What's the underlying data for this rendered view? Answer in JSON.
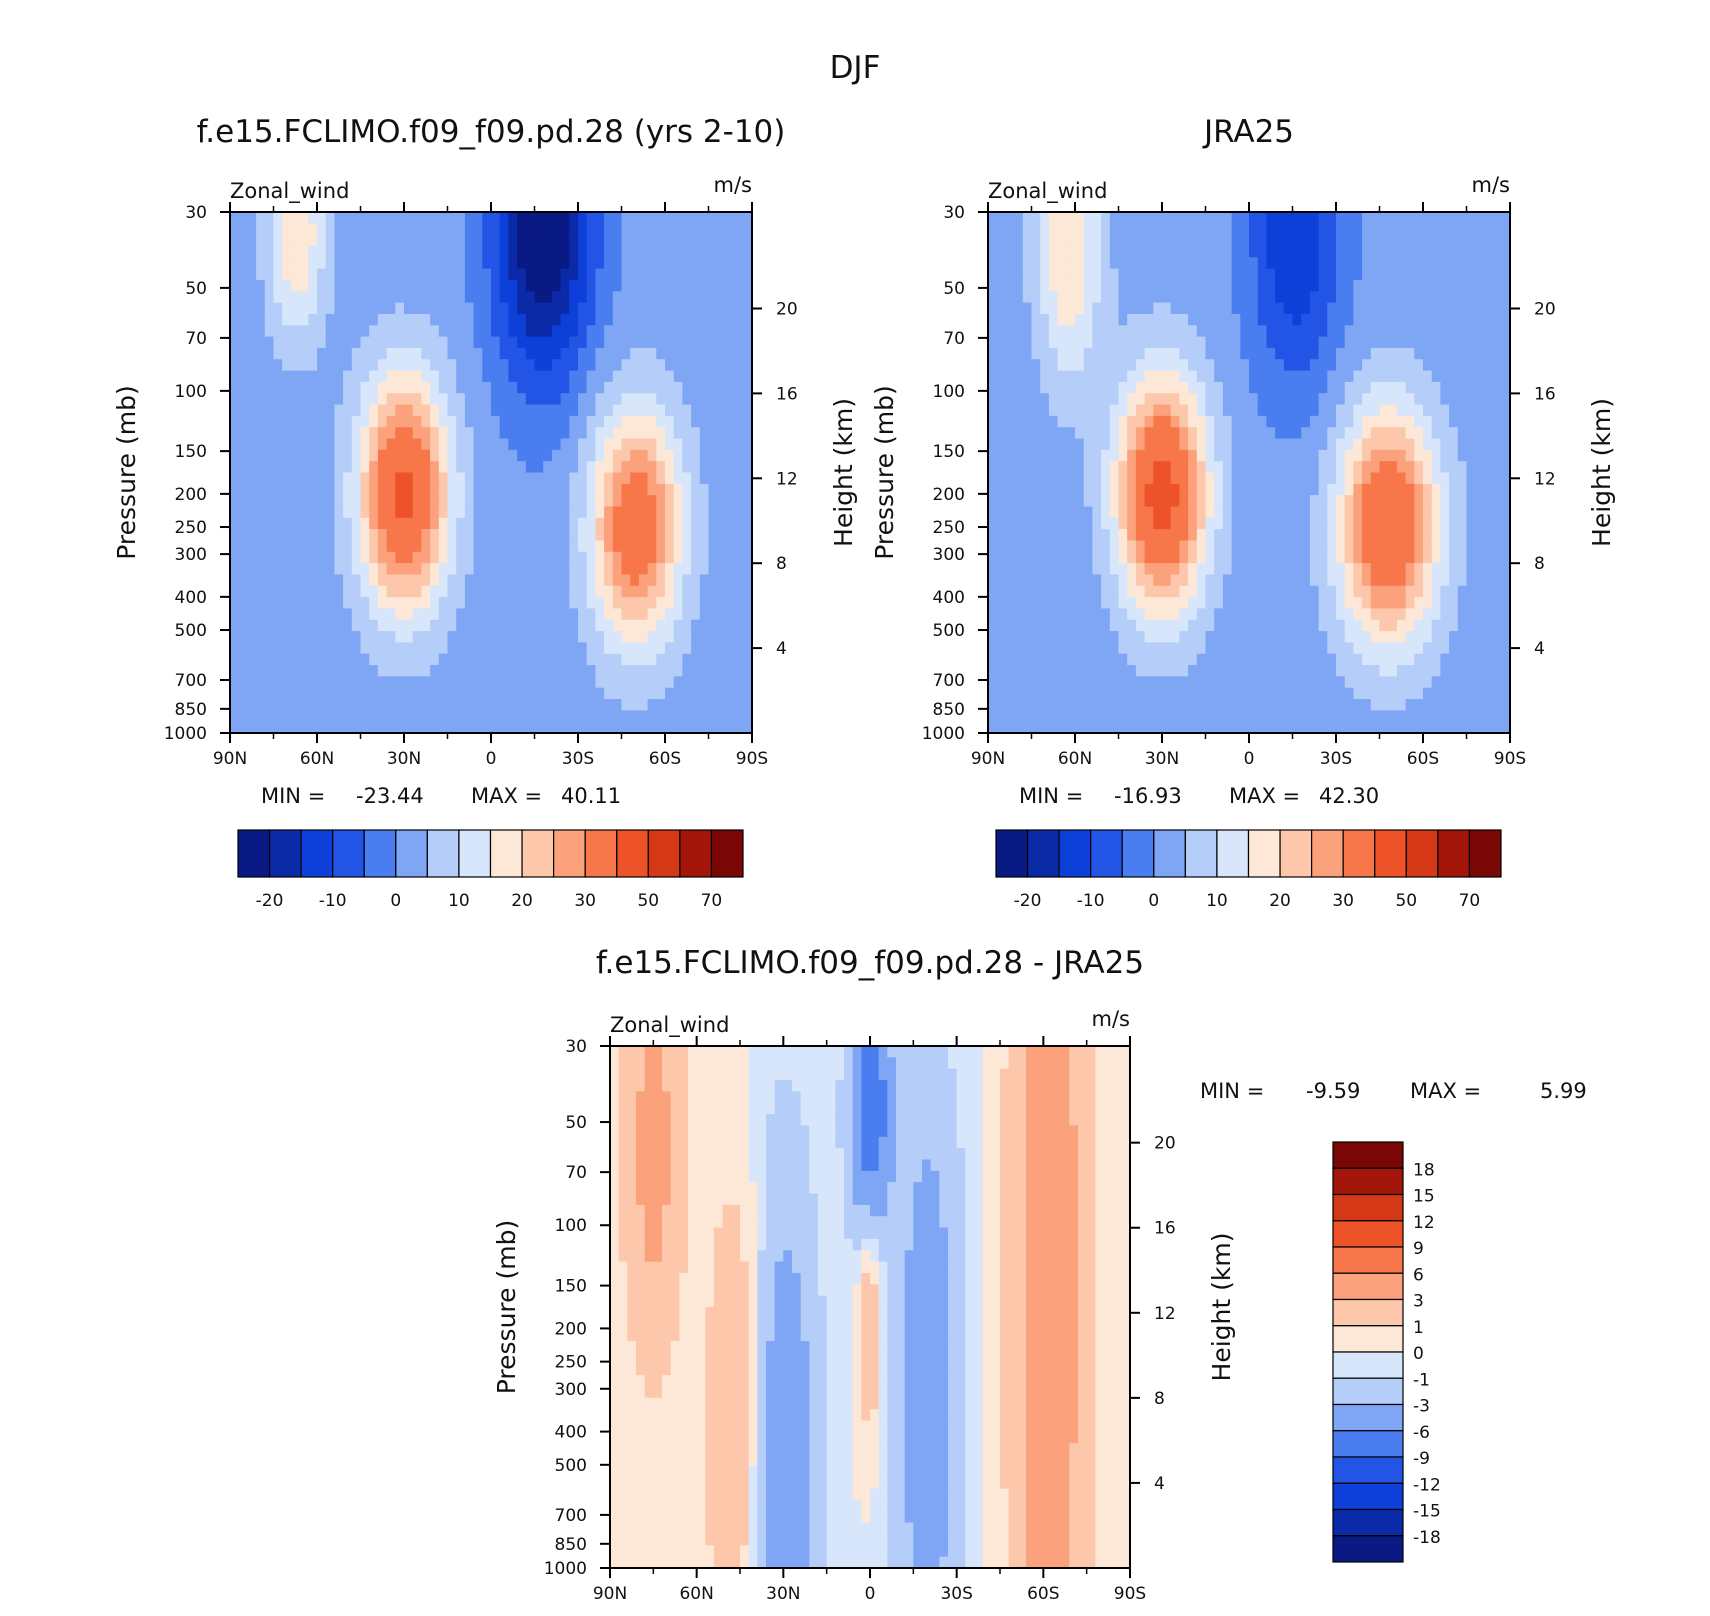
{
  "title": "DJF",
  "palette": {
    "cmap15": [
      "#0a1a85",
      "#0b2aa8",
      "#0d40d9",
      "#2255e6",
      "#4a7ef0",
      "#7ea6f5",
      "#b5cdf9",
      "#d7e6fb",
      "#fde7d6",
      "#fcc7aa",
      "#fba17b",
      "#f7774a",
      "#ee5228",
      "#d43816",
      "#a5160a",
      "#7a0606"
    ],
    "cmap16": [
      "#0a1a85",
      "#0b2aa8",
      "#0d40d9",
      "#2255e6",
      "#4a7ef0",
      "#7ea6f5",
      "#b5cdf9",
      "#d7e6fb",
      "#fde7d6",
      "#fcc7aa",
      "#fba17b",
      "#f7774a",
      "#ee5228",
      "#d43816",
      "#a5160a",
      "#7a0606"
    ]
  },
  "chart_data": [
    {
      "type": "heatmap",
      "name": "model",
      "title": "f.e15.FCLIMO.f09_f09.pd.28 (yrs 2-10)",
      "left_label": "Zonal_wind",
      "right_label": "m/s",
      "ylabel": "Pressure (mb)",
      "ylabel_right": "Height (km)",
      "xlabel": "",
      "x_ticks": [
        "90N",
        "60N",
        "30N",
        "0",
        "30S",
        "60S",
        "90S"
      ],
      "pressure_ticks": [
        "30",
        "50",
        "70",
        "100",
        "150",
        "200",
        "250",
        "300",
        "400",
        "500",
        "700",
        "850",
        "1000"
      ],
      "height_ticks": [
        "20",
        "16",
        "12",
        "8",
        "4"
      ],
      "stats": {
        "min_label": "MIN =",
        "min": "-23.44",
        "max_label": "MAX =",
        "max": "40.11"
      },
      "levels": [
        -25,
        -20,
        -15,
        -10,
        -5,
        0,
        5,
        10,
        15,
        20,
        25,
        30,
        40,
        50,
        60,
        70
      ],
      "colorbar_labels": [
        "-20",
        "-10",
        "0",
        "10",
        "20",
        "30",
        "50",
        "70"
      ],
      "field_centers": [
        {
          "lat": 30,
          "p": 200,
          "u": 40,
          "wlat": 11,
          "wp": 0.55
        },
        {
          "lat": -50,
          "p": 250,
          "u": 35,
          "wlat": 11,
          "wp": 0.55
        },
        {
          "lat": -18,
          "p": 35,
          "u": -28,
          "wlat": 12,
          "wp": 0.7
        },
        {
          "lat": 67,
          "p": 35,
          "u": 18,
          "wlat": 7,
          "wp": 0.5
        }
      ]
    },
    {
      "type": "heatmap",
      "name": "obs",
      "title": "JRA25",
      "left_label": "Zonal_wind",
      "right_label": "m/s",
      "ylabel": "Pressure (mb)",
      "ylabel_right": "Height (km)",
      "x_ticks": [
        "90N",
        "60N",
        "30N",
        "0",
        "30S",
        "60S",
        "90S"
      ],
      "pressure_ticks": [
        "30",
        "50",
        "70",
        "100",
        "150",
        "200",
        "250",
        "300",
        "400",
        "500",
        "700",
        "850",
        "1000"
      ],
      "height_ticks": [
        "20",
        "16",
        "12",
        "8",
        "4"
      ],
      "stats": {
        "min_label": "MIN =",
        "min": "-16.93",
        "max_label": "MAX =",
        "max": "42.30"
      },
      "levels": [
        -25,
        -20,
        -15,
        -10,
        -5,
        0,
        5,
        10,
        15,
        20,
        25,
        30,
        40,
        50,
        60,
        70
      ],
      "colorbar_labels": [
        "-20",
        "-10",
        "0",
        "10",
        "20",
        "30",
        "50",
        "70"
      ],
      "field_centers": [
        {
          "lat": 30,
          "p": 200,
          "u": 42,
          "wlat": 11,
          "wp": 0.55
        },
        {
          "lat": -48,
          "p": 250,
          "u": 38,
          "wlat": 12,
          "wp": 0.55
        },
        {
          "lat": -16,
          "p": 35,
          "u": -17,
          "wlat": 11,
          "wp": 0.7
        },
        {
          "lat": 62,
          "p": 40,
          "u": 18,
          "wlat": 8,
          "wp": 0.6
        }
      ]
    },
    {
      "type": "heatmap",
      "name": "diff",
      "title": "f.e15.FCLIMO.f09_f09.pd.28 - JRA25",
      "left_label": "Zonal_wind",
      "right_label": "m/s",
      "ylabel": "Pressure (mb)",
      "ylabel_right": "Height (km)",
      "x_ticks": [
        "90N",
        "60N",
        "30N",
        "0",
        "30S",
        "60S",
        "90S"
      ],
      "pressure_ticks": [
        "30",
        "50",
        "70",
        "100",
        "150",
        "200",
        "250",
        "300",
        "400",
        "500",
        "700",
        "850",
        "1000"
      ],
      "height_ticks": [
        "20",
        "16",
        "12",
        "8",
        "4"
      ],
      "stats": {
        "min_label": "MIN =",
        "min": "-9.59",
        "max_label": "MAX =",
        "max": "5.99"
      },
      "levels": [
        -21,
        -18,
        -15,
        -12,
        -9,
        -6,
        -3,
        -1,
        0,
        1,
        3,
        6,
        9,
        12,
        15,
        18
      ],
      "colorbar_labels": [
        "18",
        "15",
        "12",
        "9",
        "6",
        "3",
        "1",
        "0",
        "-1",
        "-3",
        "-6",
        "-9",
        "-12",
        "-15",
        "-18"
      ],
      "field_centers": [
        {
          "lat": -62,
          "p": 150,
          "u": 5,
          "wlat": 9,
          "wp": 3
        },
        {
          "lat": 75,
          "p": 60,
          "u": 4,
          "wlat": 7,
          "wp": 1
        },
        {
          "lat": 45,
          "p": 400,
          "u": 3,
          "wlat": 8,
          "wp": 1.2
        },
        {
          "lat": 0,
          "p": 45,
          "u": -9,
          "wlat": 5,
          "wp": 0.6
        },
        {
          "lat": 30,
          "p": 600,
          "u": -6,
          "wlat": 8,
          "wp": 1.5
        },
        {
          "lat": -20,
          "p": 300,
          "u": -5,
          "wlat": 8,
          "wp": 1.5
        },
        {
          "lat": 0,
          "p": 170,
          "u": 3,
          "wlat": 3,
          "wp": 0.6
        }
      ]
    }
  ]
}
